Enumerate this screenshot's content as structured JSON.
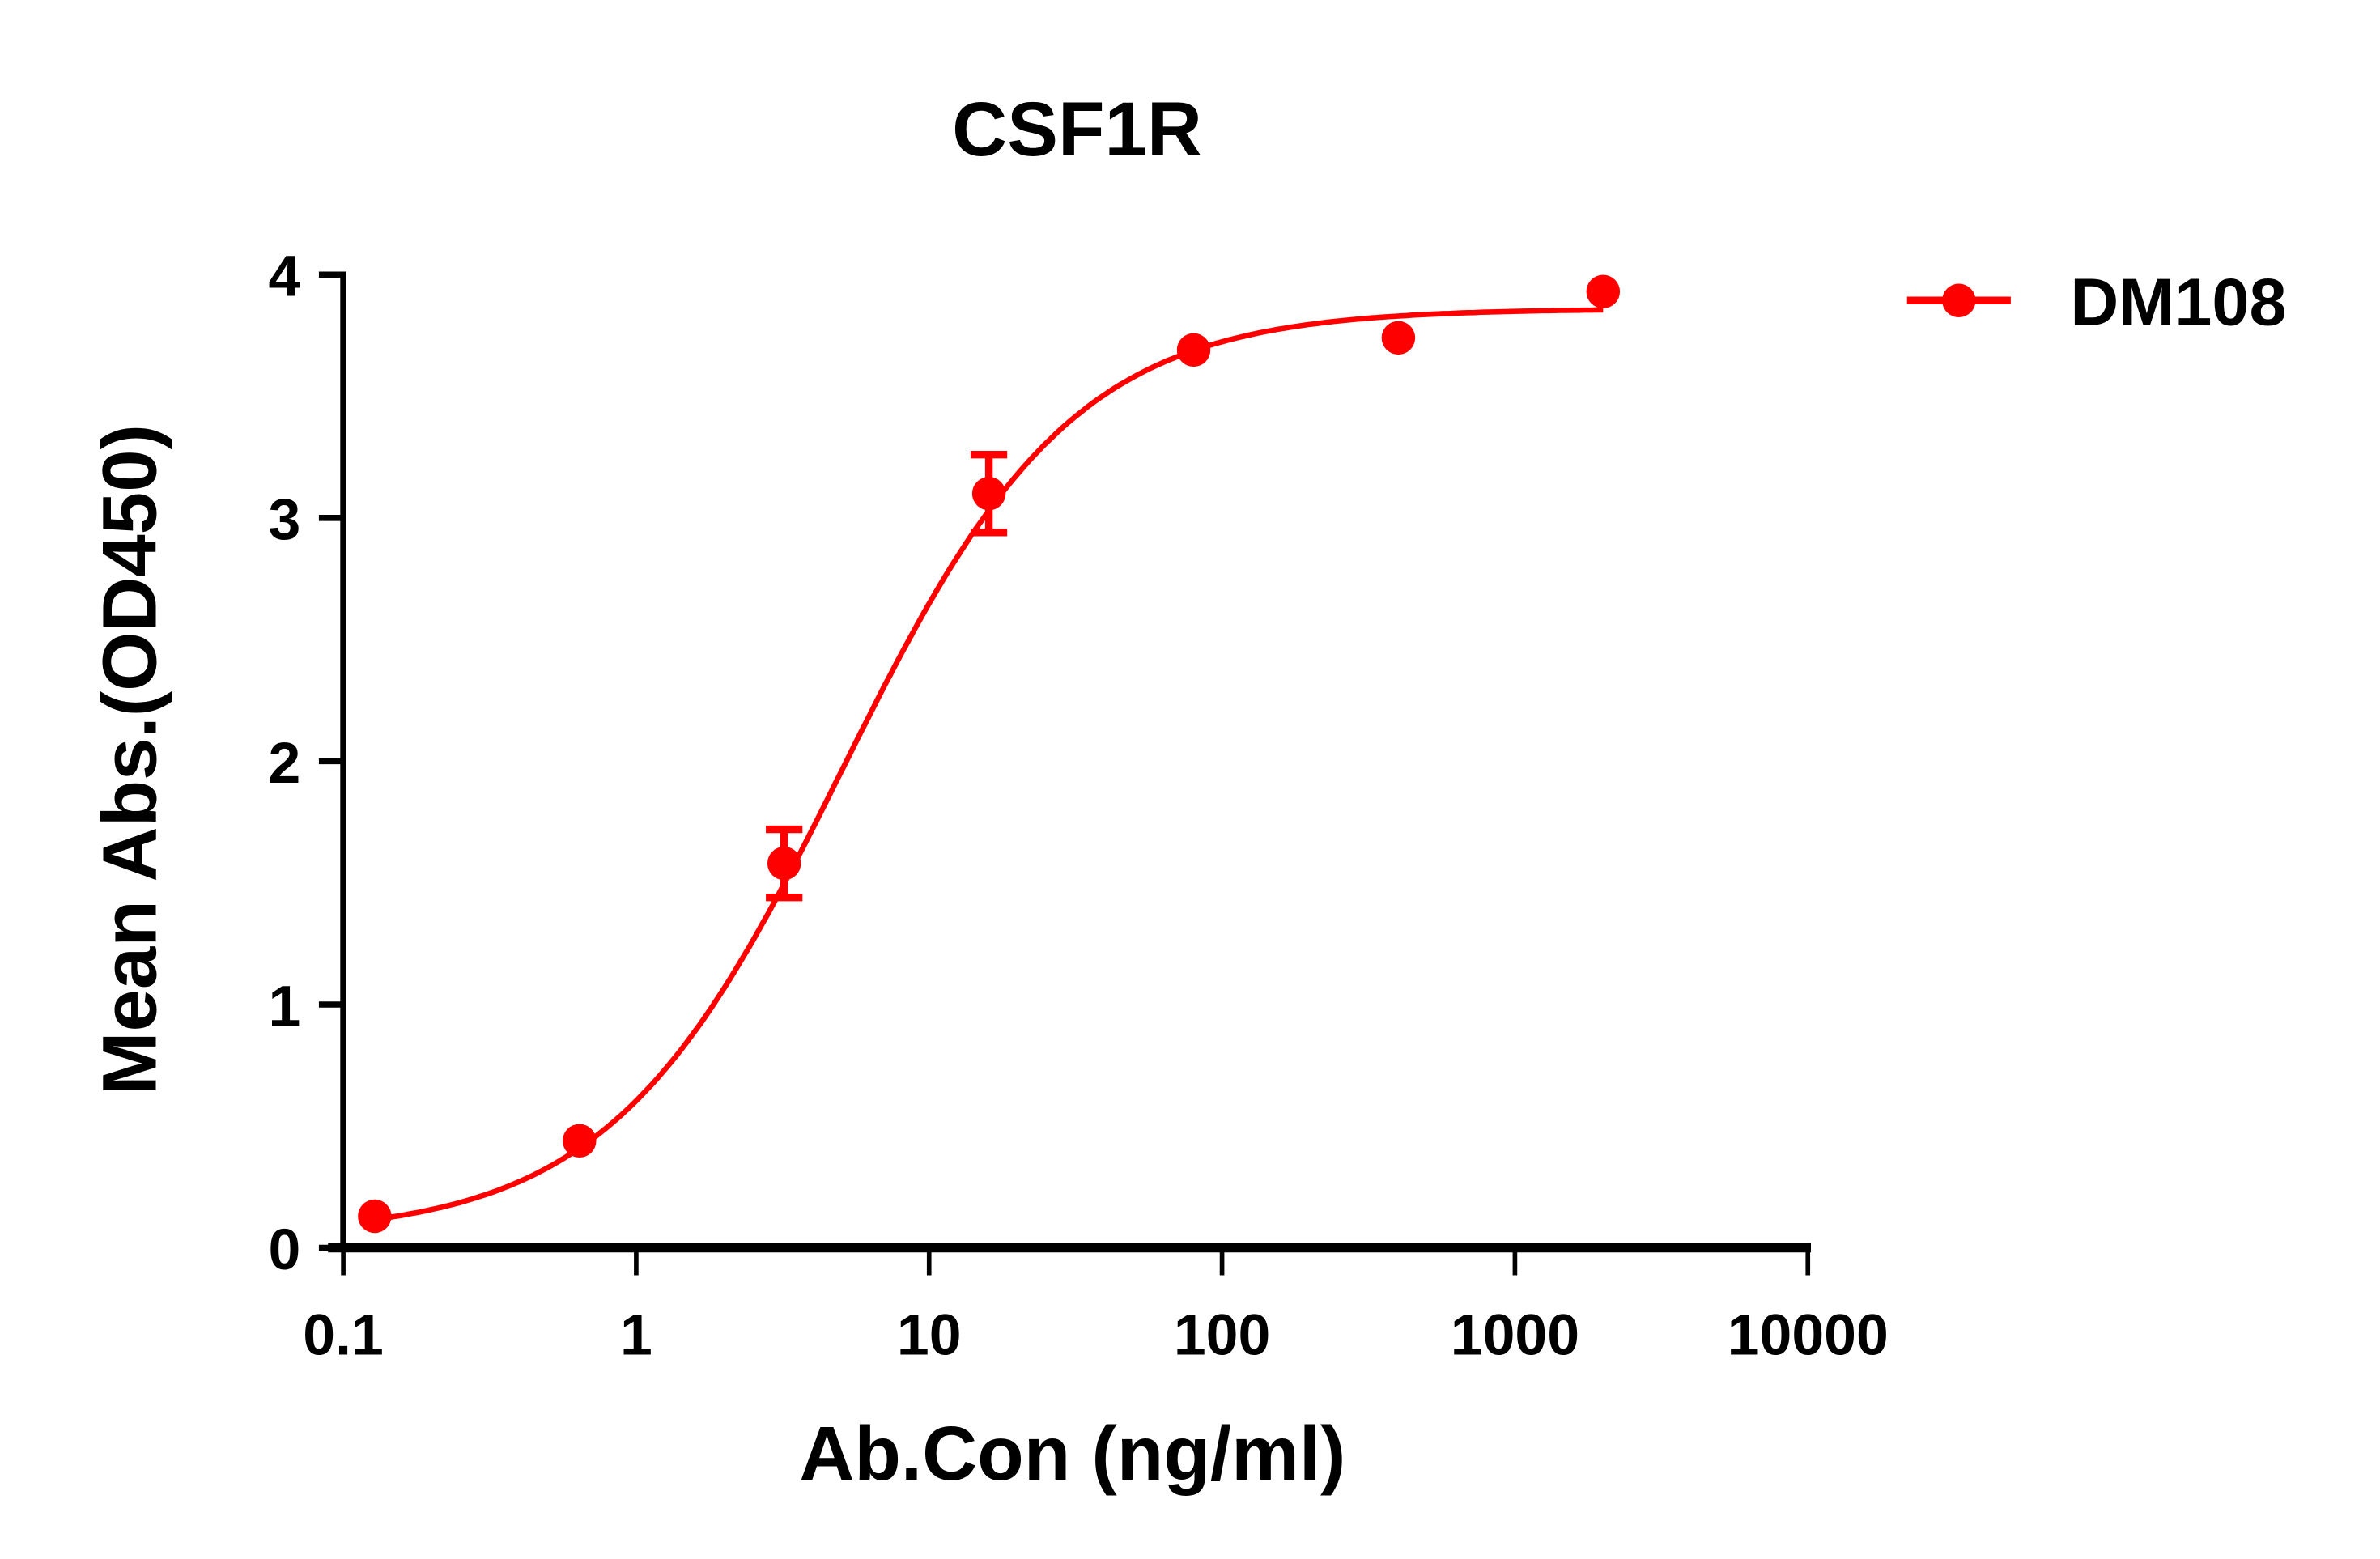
{
  "chart_data": {
    "type": "scatter",
    "title": "CSF1R",
    "xlabel": "Ab.Con (ng/ml)",
    "ylabel": "Mean Abs.(OD450)",
    "xscale": "log",
    "xlim": [
      0.1,
      10000
    ],
    "ylim": [
      0,
      4
    ],
    "xticks": [
      "0.1",
      "1",
      "10",
      "100",
      "1000",
      "10000"
    ],
    "yticks": [
      "0",
      "1",
      "2",
      "3",
      "4"
    ],
    "grid": false,
    "legend_position": "top-right",
    "series": [
      {
        "name": "DM108",
        "color": "#ff0000",
        "fit": "sigmoidal dose-response curve",
        "points": [
          {
            "x": 0.128,
            "y": 0.13,
            "err": 0.02
          },
          {
            "x": 0.64,
            "y": 0.44,
            "err": 0.02
          },
          {
            "x": 3.2,
            "y": 1.58,
            "err": 0.14
          },
          {
            "x": 16,
            "y": 3.1,
            "err": 0.16
          },
          {
            "x": 80,
            "y": 3.69,
            "err": 0.02
          },
          {
            "x": 400,
            "y": 3.74,
            "err": 0.02
          },
          {
            "x": 2000,
            "y": 3.93,
            "err": 0.02
          }
        ]
      }
    ]
  }
}
